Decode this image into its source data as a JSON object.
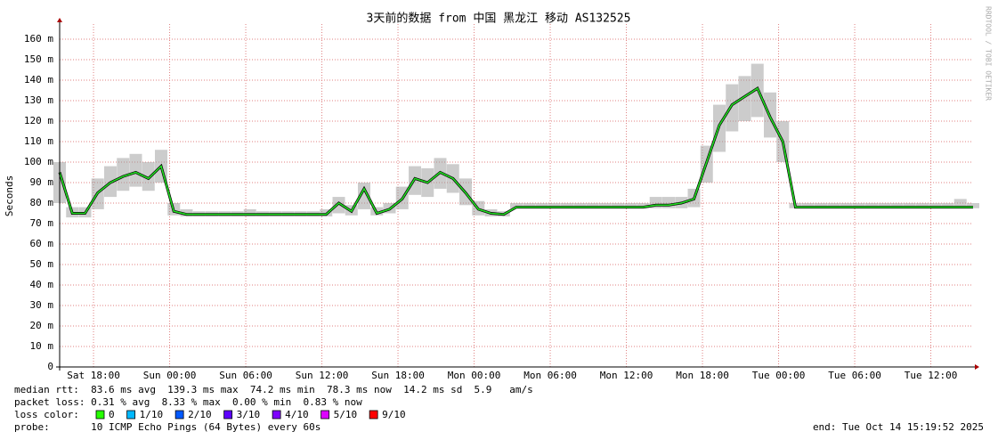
{
  "chart_data": {
    "type": "line",
    "title": "3天前的数据 from 中国 黑龙江 移动 AS132525",
    "y_label": "Seconds",
    "watermark": "RRDTOOL / TOBI OETIKER",
    "xlim": [
      15.33,
      87.33
    ],
    "xticks": [
      {
        "value": 18,
        "label": "Sat 18:00"
      },
      {
        "value": 24,
        "label": "Sun 00:00"
      },
      {
        "value": 30,
        "label": "Sun 06:00"
      },
      {
        "value": 36,
        "label": "Sun 12:00"
      },
      {
        "value": 42,
        "label": "Sun 18:00"
      },
      {
        "value": 48,
        "label": "Mon 00:00"
      },
      {
        "value": 54,
        "label": "Mon 06:00"
      },
      {
        "value": 60,
        "label": "Mon 12:00"
      },
      {
        "value": 66,
        "label": "Mon 18:00"
      },
      {
        "value": 72,
        "label": "Tue 00:00"
      },
      {
        "value": 78,
        "label": "Tue 06:00"
      },
      {
        "value": 84,
        "label": "Tue 12:00"
      }
    ],
    "ylim": [
      0,
      0.17
    ],
    "yticks": [
      0,
      {
        "value": 0.01,
        "label": "10 m"
      },
      {
        "value": 0.02,
        "label": "20 m"
      },
      {
        "value": 0.03,
        "label": "30 m"
      },
      {
        "value": 0.04,
        "label": "40 m"
      },
      {
        "value": 0.05,
        "label": "50 m"
      },
      {
        "value": 0.06,
        "label": "60 m"
      },
      {
        "value": 0.07,
        "label": "70 m"
      },
      {
        "value": 0.08,
        "label": "80 m"
      },
      {
        "value": 0.09,
        "label": "90 m"
      },
      {
        "value": 0.1,
        "label": "100 m"
      },
      {
        "value": 0.11,
        "label": "110 m"
      },
      {
        "value": 0.12,
        "label": "120 m"
      },
      {
        "value": 0.13,
        "label": "130 m"
      },
      {
        "value": 0.14,
        "label": "140 m"
      },
      {
        "value": 0.15,
        "label": "150 m"
      },
      {
        "value": 0.16,
        "label": "160 m"
      }
    ],
    "grid": true,
    "x": [
      15.33,
      16.33,
      17.33,
      18.33,
      19.33,
      20.33,
      21.33,
      22.33,
      23.33,
      24.33,
      25.33,
      26.33,
      27.33,
      28.33,
      29.33,
      30.33,
      31.33,
      32.33,
      33.33,
      34.33,
      35.33,
      36.33,
      37.33,
      38.33,
      39.33,
      40.33,
      41.33,
      42.33,
      43.33,
      44.33,
      45.33,
      46.33,
      47.33,
      48.33,
      49.33,
      50.33,
      51.33,
      52.33,
      53.33,
      54.33,
      55.33,
      56.33,
      57.33,
      58.33,
      59.33,
      60.33,
      61.33,
      62.33,
      63.33,
      64.33,
      65.33,
      66.33,
      67.33,
      68.33,
      69.33,
      70.33,
      71.33,
      72.33,
      73.33,
      74.33,
      75.33,
      76.33,
      77.33,
      78.33,
      79.33,
      80.33,
      81.33,
      82.33,
      83.33,
      84.33,
      85.33,
      86.33,
      87.33
    ],
    "series": [
      {
        "name": "median",
        "color": "#22dd22",
        "values": [
          0.095,
          0.075,
          0.075,
          0.085,
          0.09,
          0.093,
          0.095,
          0.092,
          0.098,
          0.076,
          0.0745,
          0.0745,
          0.0745,
          0.0745,
          0.0745,
          0.0745,
          0.0745,
          0.0745,
          0.0745,
          0.0745,
          0.0745,
          0.0745,
          0.08,
          0.076,
          0.087,
          0.075,
          0.077,
          0.082,
          0.092,
          0.09,
          0.095,
          0.092,
          0.085,
          0.077,
          0.075,
          0.0745,
          0.078,
          0.078,
          0.078,
          0.078,
          0.078,
          0.078,
          0.078,
          0.078,
          0.078,
          0.078,
          0.078,
          0.079,
          0.079,
          0.08,
          0.082,
          0.1,
          0.118,
          0.128,
          0.132,
          0.136,
          0.122,
          0.11,
          0.078,
          0.078,
          0.078,
          0.078,
          0.078,
          0.078,
          0.078,
          0.078,
          0.078,
          0.078,
          0.078,
          0.078,
          0.078,
          0.078,
          0.078
        ]
      }
    ],
    "smoke": {
      "color": "#999999",
      "low": [
        0.08,
        0.073,
        0.073,
        0.077,
        0.083,
        0.086,
        0.088,
        0.086,
        0.09,
        0.074,
        0.0735,
        0.0735,
        0.0735,
        0.0735,
        0.0735,
        0.0735,
        0.0735,
        0.0735,
        0.0735,
        0.0735,
        0.0735,
        0.0735,
        0.075,
        0.074,
        0.077,
        0.074,
        0.075,
        0.077,
        0.084,
        0.083,
        0.087,
        0.085,
        0.079,
        0.074,
        0.0735,
        0.0735,
        0.0775,
        0.0775,
        0.0775,
        0.0775,
        0.0775,
        0.0775,
        0.0775,
        0.0775,
        0.0775,
        0.0775,
        0.0775,
        0.0775,
        0.0775,
        0.0775,
        0.078,
        0.09,
        0.105,
        0.115,
        0.12,
        0.122,
        0.112,
        0.1,
        0.0775,
        0.0775,
        0.0775,
        0.0775,
        0.0775,
        0.0775,
        0.0775,
        0.0775,
        0.0775,
        0.0775,
        0.0775,
        0.0775,
        0.0775,
        0.0775,
        0.0775
      ],
      "high": [
        0.1,
        0.078,
        0.078,
        0.092,
        0.098,
        0.102,
        0.104,
        0.1,
        0.106,
        0.08,
        0.077,
        0.076,
        0.076,
        0.076,
        0.076,
        0.077,
        0.076,
        0.076,
        0.076,
        0.076,
        0.076,
        0.077,
        0.083,
        0.079,
        0.09,
        0.078,
        0.08,
        0.088,
        0.098,
        0.097,
        0.102,
        0.099,
        0.092,
        0.081,
        0.077,
        0.076,
        0.08,
        0.08,
        0.08,
        0.08,
        0.08,
        0.08,
        0.08,
        0.08,
        0.08,
        0.08,
        0.08,
        0.083,
        0.083,
        0.083,
        0.087,
        0.108,
        0.128,
        0.138,
        0.142,
        0.148,
        0.134,
        0.12,
        0.08,
        0.08,
        0.08,
        0.08,
        0.08,
        0.08,
        0.08,
        0.08,
        0.08,
        0.08,
        0.08,
        0.08,
        0.08,
        0.082,
        0.08
      ]
    },
    "stats": [
      "median rtt:  83.6 ms avg  139.3 ms max  74.2 ms min  78.3 ms now  14.2 ms sd  5.9   am/s",
      "packet loss: 0.31 % avg  8.33 % max  0.00 % min  0.83 % now"
    ],
    "loss_label": "loss color:",
    "loss_colors": [
      {
        "label": "0",
        "color": "#26ff00"
      },
      {
        "label": "1/10",
        "color": "#00b8ff"
      },
      {
        "label": "2/10",
        "color": "#0059ff"
      },
      {
        "label": "3/10",
        "color": "#5e00ff"
      },
      {
        "label": "4/10",
        "color": "#7e00ff"
      },
      {
        "label": "5/10",
        "color": "#dd00ff"
      },
      {
        "label": "9/10",
        "color": "#ff0000"
      }
    ],
    "probe": "probe:       10 ICMP Echo Pings (64 Bytes) every 60s",
    "end": "end: Tue Oct 14 15:19:52 2025"
  }
}
